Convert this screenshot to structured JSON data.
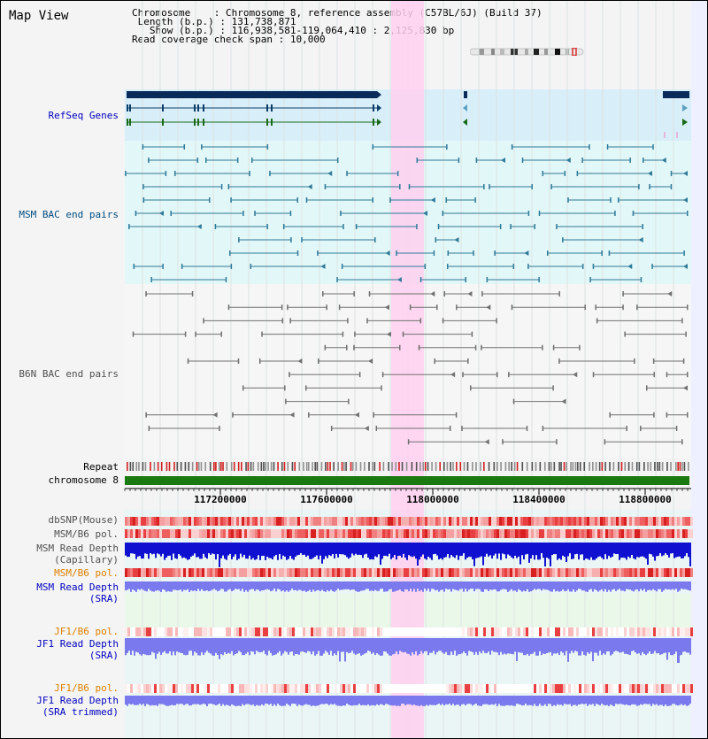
{
  "view_title": "Map View",
  "header": {
    "chromosome": {
      "key": "Chromosome",
      "value": "Chromosome 8, reference assembly (C57BL/6J) (Build 37)"
    },
    "length": {
      "key": "Length (b.p.)",
      "value": "131,738,871"
    },
    "show": {
      "key": "Show (b.p.)",
      "value": "116,938,581-119,064,410 : 2,125,830 bp"
    },
    "coverage": {
      "key": "Read coverage check span",
      "value": "10,000"
    }
  },
  "tracks": {
    "refseq": "RefSeq Genes",
    "msm_bac": "MSM BAC end pairs",
    "b6n_bac": "B6N BAC end pairs",
    "repeat": "Repeat",
    "chromosome": "chromosome 8",
    "dbsnp": "dbSNP(Mouse)",
    "msm_b6_pol_1": "MSM/B6 pol.",
    "msm_read_depth_cap_1": "MSM Read Depth",
    "msm_read_depth_cap_2": "(Capillary)",
    "msm_b6_pol_2": "MSM/B6 pol.",
    "msm_read_depth_sra_1": "MSM Read Depth",
    "msm_read_depth_sra_2": "(SRA)",
    "jf1_b6_pol_1": "JF1/B6 pol.",
    "jf1_read_depth_sra_1": "JF1 Read Depth",
    "jf1_read_depth_sra_2": "(SRA)",
    "jf1_b6_pol_2": "JF1/B6 pol.",
    "jf1_read_depth_trim_1": "JF1 Read Depth",
    "jf1_read_depth_trim_2": "(SRA trimmed)"
  },
  "ruler": {
    "ticks": [
      "117200000",
      "117600000",
      "118000000",
      "118400000",
      "118800000"
    ]
  },
  "colors": {
    "label_blue": "#0000c0",
    "label_teal": "#004c80",
    "label_gray": "#505050",
    "label_orange": "#e08000",
    "highlight": "#ffd0f0",
    "gene_dark": "#0a2a5a",
    "msm_line": "#2f7a9a",
    "b6n_line": "#707070",
    "chrom_green": "#1a7a10",
    "depth_blue": "#1010d0",
    "depth_light": "#7a7aee"
  }
}
